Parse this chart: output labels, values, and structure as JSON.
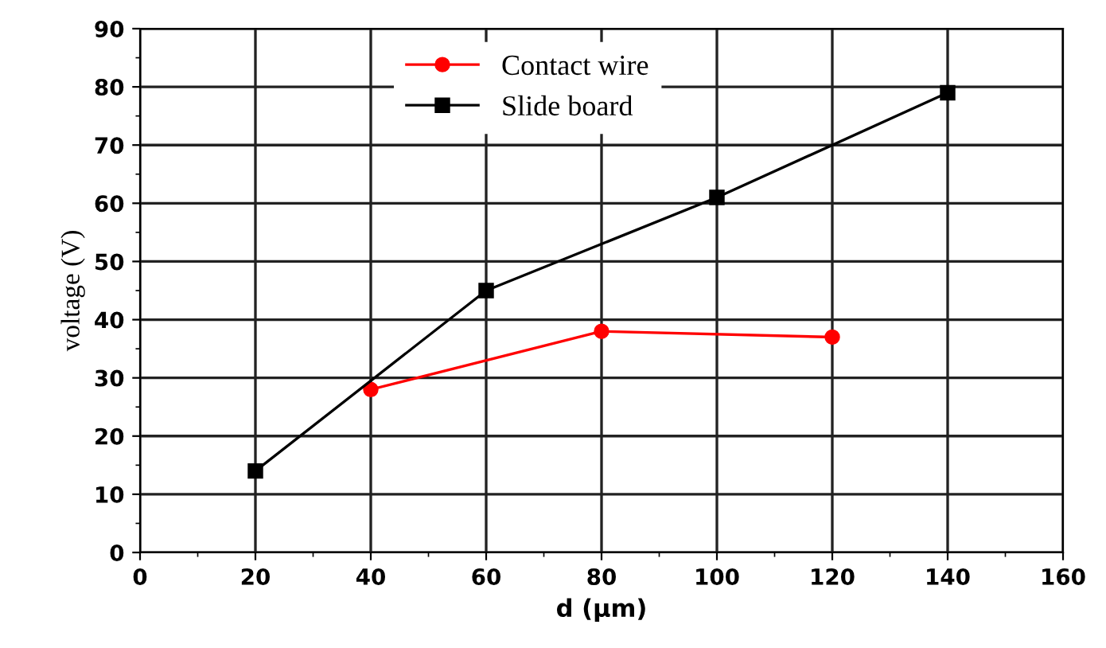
{
  "chart_data": {
    "type": "line",
    "xlabel": "d (μm)",
    "ylabel": "voltage (V)",
    "xlim": [
      0,
      160
    ],
    "xticks": [
      0,
      20,
      40,
      60,
      80,
      100,
      120,
      140,
      160
    ],
    "ylim": [
      0,
      90
    ],
    "yticks": [
      0,
      10,
      20,
      30,
      40,
      50,
      60,
      70,
      80,
      90
    ],
    "grid": true,
    "legend": "top",
    "line_style": "solid",
    "series": [
      {
        "name": "Contact wire",
        "color": "#ff0000",
        "marker": "circle",
        "x": [
          40,
          80,
          120
        ],
        "values": [
          28,
          38,
          37
        ]
      },
      {
        "name": "Slide board",
        "color": "#000000",
        "marker": "square",
        "x": [
          20,
          60,
          100,
          140
        ],
        "values": [
          14,
          45,
          61,
          79
        ]
      }
    ]
  }
}
